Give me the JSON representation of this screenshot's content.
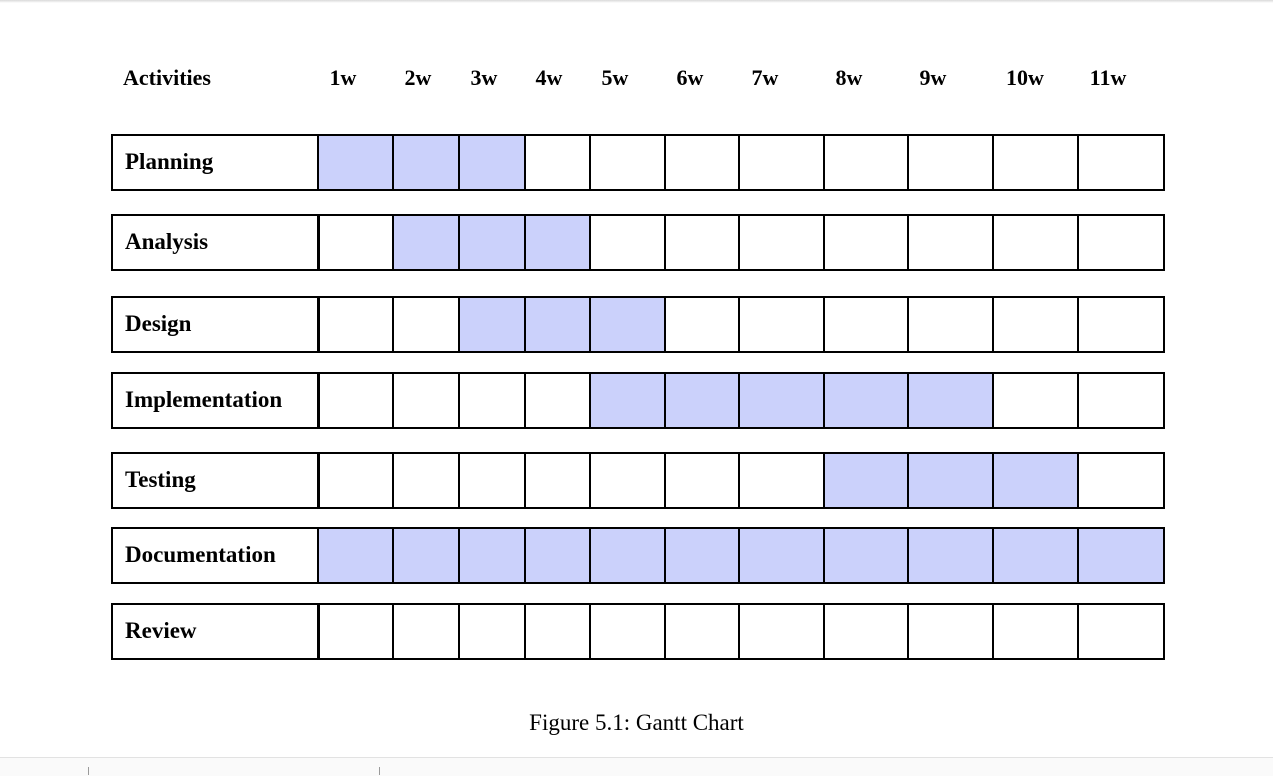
{
  "chart_data": {
    "type": "table",
    "title": "",
    "caption": "Figure 5.1: Gantt Chart",
    "header": "Activities",
    "categories": [
      "1w",
      "2w",
      "3w",
      "4w",
      "5w",
      "6w",
      "7w",
      "8w",
      "9w",
      "10w",
      "11w"
    ],
    "series": [
      {
        "name": "Planning",
        "start_week": 1,
        "end_week": 3
      },
      {
        "name": "Analysis",
        "start_week": 2,
        "end_week": 4
      },
      {
        "name": "Design",
        "start_week": 3,
        "end_week": 5
      },
      {
        "name": "Implementation",
        "start_week": 5,
        "end_week": 9
      },
      {
        "name": "Testing",
        "start_week": 8,
        "end_week": 10
      },
      {
        "name": "Documentation",
        "start_week": 1,
        "end_week": 11
      },
      {
        "name": "Review",
        "start_week": null,
        "end_week": null
      }
    ],
    "fill_color": "#cbd1fb",
    "grid": true
  }
}
